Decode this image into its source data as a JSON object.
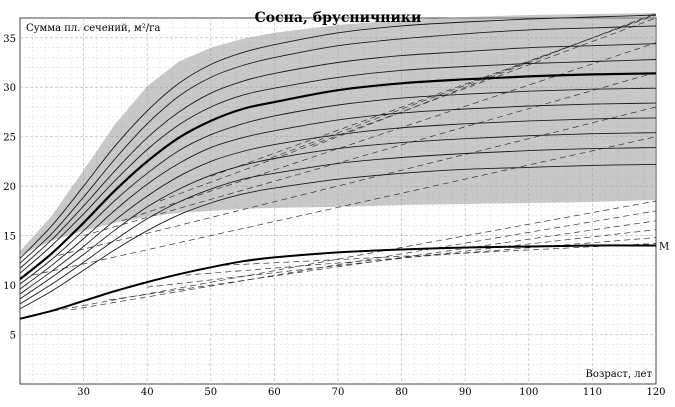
{
  "chart_data": {
    "type": "line",
    "title": "Сосна, брусничники",
    "ylabel": "Сумма пл. сечений, м²/га",
    "xlabel": "Возраст, лет",
    "xlim": [
      20,
      120
    ],
    "ylim": [
      0,
      37
    ],
    "x_ticks": [
      30,
      40,
      50,
      60,
      70,
      80,
      90,
      100,
      110,
      120
    ],
    "y_ticks": [
      5,
      10,
      15,
      20,
      25,
      30,
      35
    ],
    "grid": true,
    "shaded_region": {
      "description_hidden": true,
      "x": [
        20,
        25,
        30,
        35,
        40,
        45,
        50,
        55,
        60,
        70,
        80,
        90,
        100,
        110,
        120
      ],
      "upper": [
        13.4,
        17.0,
        21.6,
        26.3,
        30.1,
        32.6,
        34.0,
        34.9,
        35.5,
        36.3,
        36.8,
        37.1,
        37.3,
        37.4,
        37.5
      ],
      "lower": [
        13.0,
        14.5,
        15.5,
        16.3,
        16.9,
        17.3,
        17.5,
        17.7,
        17.8,
        17.9,
        18.1,
        18.2,
        18.3,
        18.4,
        18.6
      ]
    },
    "series": [
      {
        "role": "fan",
        "x": [
          20,
          25,
          30,
          35,
          40,
          45,
          50,
          55,
          60,
          70,
          80,
          90,
          100,
          110,
          120
        ],
        "values": [
          12.7,
          16.0,
          20.0,
          24.1,
          27.6,
          30.4,
          32.3,
          33.5,
          34.3,
          35.5,
          36.2,
          36.6,
          36.9,
          37.1,
          37.3
        ]
      },
      {
        "role": "fan",
        "x": [
          20,
          25,
          30,
          35,
          40,
          45,
          50,
          55,
          60,
          70,
          80,
          90,
          100,
          110,
          120
        ],
        "values": [
          12.2,
          15.2,
          18.9,
          22.8,
          26.3,
          29.1,
          31.0,
          32.2,
          33.0,
          34.2,
          34.9,
          35.4,
          35.8,
          36.0,
          36.2
        ]
      },
      {
        "role": "fan",
        "x": [
          20,
          25,
          30,
          35,
          40,
          45,
          50,
          55,
          60,
          70,
          80,
          90,
          100,
          110,
          120
        ],
        "values": [
          11.7,
          14.6,
          18.0,
          21.6,
          24.9,
          27.5,
          29.4,
          30.6,
          31.4,
          32.5,
          33.2,
          33.6,
          34.0,
          34.2,
          34.4
        ]
      },
      {
        "role": "fan",
        "x": [
          20,
          25,
          30,
          35,
          40,
          45,
          50,
          55,
          60,
          70,
          80,
          90,
          100,
          110,
          120
        ],
        "values": [
          11.2,
          14.0,
          17.2,
          20.6,
          23.7,
          26.2,
          28.0,
          29.2,
          29.9,
          31.0,
          31.7,
          32.1,
          32.4,
          32.6,
          32.8
        ]
      },
      {
        "role": "fan-bold",
        "x": [
          20,
          25,
          30,
          35,
          40,
          45,
          50,
          55,
          60,
          70,
          80,
          90,
          100,
          110,
          120
        ],
        "values": [
          10.6,
          13.2,
          16.3,
          19.6,
          22.5,
          24.9,
          26.6,
          27.8,
          28.5,
          29.7,
          30.4,
          30.8,
          31.1,
          31.3,
          31.4
        ]
      },
      {
        "role": "fan",
        "x": [
          20,
          25,
          30,
          35,
          40,
          45,
          50,
          55,
          60,
          70,
          80,
          90,
          100,
          110,
          120
        ],
        "values": [
          10.1,
          12.6,
          15.5,
          18.6,
          21.3,
          23.6,
          25.2,
          26.3,
          27.1,
          28.2,
          28.9,
          29.3,
          29.6,
          29.8,
          29.9
        ]
      },
      {
        "role": "fan",
        "x": [
          20,
          25,
          30,
          35,
          40,
          45,
          50,
          55,
          60,
          70,
          80,
          90,
          100,
          110,
          120
        ],
        "values": [
          9.6,
          12.0,
          14.7,
          17.6,
          20.2,
          22.3,
          23.9,
          24.9,
          25.6,
          26.7,
          27.4,
          27.8,
          28.1,
          28.3,
          28.4
        ]
      },
      {
        "role": "fan",
        "x": [
          20,
          25,
          30,
          35,
          40,
          45,
          50,
          55,
          60,
          70,
          80,
          90,
          100,
          110,
          120
        ],
        "values": [
          9.1,
          11.4,
          13.9,
          16.6,
          19.0,
          21.0,
          22.5,
          23.5,
          24.2,
          25.2,
          25.9,
          26.3,
          26.6,
          26.8,
          26.9
        ]
      },
      {
        "role": "fan",
        "x": [
          20,
          25,
          30,
          35,
          40,
          45,
          50,
          55,
          60,
          70,
          80,
          90,
          100,
          110,
          120
        ],
        "values": [
          8.6,
          10.8,
          13.1,
          15.6,
          17.9,
          19.7,
          21.1,
          22.1,
          22.8,
          23.8,
          24.4,
          24.8,
          25.1,
          25.3,
          25.4
        ]
      },
      {
        "role": "fan",
        "x": [
          20,
          25,
          30,
          35,
          40,
          45,
          50,
          55,
          60,
          70,
          80,
          90,
          100,
          110,
          120
        ],
        "values": [
          8.1,
          10.1,
          12.3,
          14.6,
          16.7,
          18.4,
          19.7,
          20.7,
          21.3,
          22.3,
          22.9,
          23.3,
          23.6,
          23.8,
          23.9
        ]
      },
      {
        "role": "fan",
        "x": [
          20,
          25,
          30,
          35,
          40,
          45,
          50,
          55,
          60,
          70,
          80,
          90,
          100,
          110,
          120
        ],
        "values": [
          7.6,
          9.4,
          11.5,
          13.6,
          15.5,
          17.1,
          18.3,
          19.2,
          19.8,
          20.7,
          21.3,
          21.7,
          21.9,
          22.1,
          22.2
        ]
      },
      {
        "role": "lower-bold",
        "x": [
          20,
          25,
          30,
          35,
          40,
          45,
          50,
          55,
          60,
          70,
          80,
          90,
          100,
          110,
          120
        ],
        "values": [
          6.6,
          7.4,
          8.4,
          9.4,
          10.3,
          11.1,
          11.8,
          12.4,
          12.8,
          13.3,
          13.6,
          13.8,
          13.9,
          14.0,
          14.0
        ]
      }
    ],
    "dashed_lines": [
      {
        "x": [
          22,
          120
        ],
        "values": [
          7.0,
          18.5
        ]
      },
      {
        "x": [
          28,
          120
        ],
        "values": [
          7.5,
          17.5
        ]
      },
      {
        "x": [
          34,
          120
        ],
        "values": [
          8.5,
          16.5
        ]
      },
      {
        "x": [
          40,
          120
        ],
        "values": [
          9.8,
          15.6
        ]
      },
      {
        "x": [
          46,
          120
        ],
        "values": [
          11.0,
          14.8
        ]
      },
      {
        "x": [
          52,
          120
        ],
        "values": [
          12.0,
          14.2
        ]
      },
      {
        "x": [
          22,
          120
        ],
        "values": [
          11.0,
          25.0
        ]
      },
      {
        "x": [
          26,
          120
        ],
        "values": [
          13.0,
          28.0
        ]
      },
      {
        "x": [
          30,
          120
        ],
        "values": [
          15.0,
          31.5
        ]
      },
      {
        "x": [
          36,
          120
        ],
        "values": [
          16.5,
          34.5
        ]
      },
      {
        "x": [
          42,
          120
        ],
        "values": [
          18.5,
          37.0
        ]
      },
      {
        "x": [
          50,
          120
        ],
        "values": [
          21.0,
          37.3
        ]
      },
      {
        "x": [
          58,
          120
        ],
        "values": [
          22.5,
          37.4
        ]
      },
      {
        "x": [
          66,
          120
        ],
        "values": [
          24.0,
          37.5
        ]
      }
    ],
    "annotations": [
      {
        "text": "М",
        "x": 120,
        "y": 14.0
      }
    ]
  }
}
